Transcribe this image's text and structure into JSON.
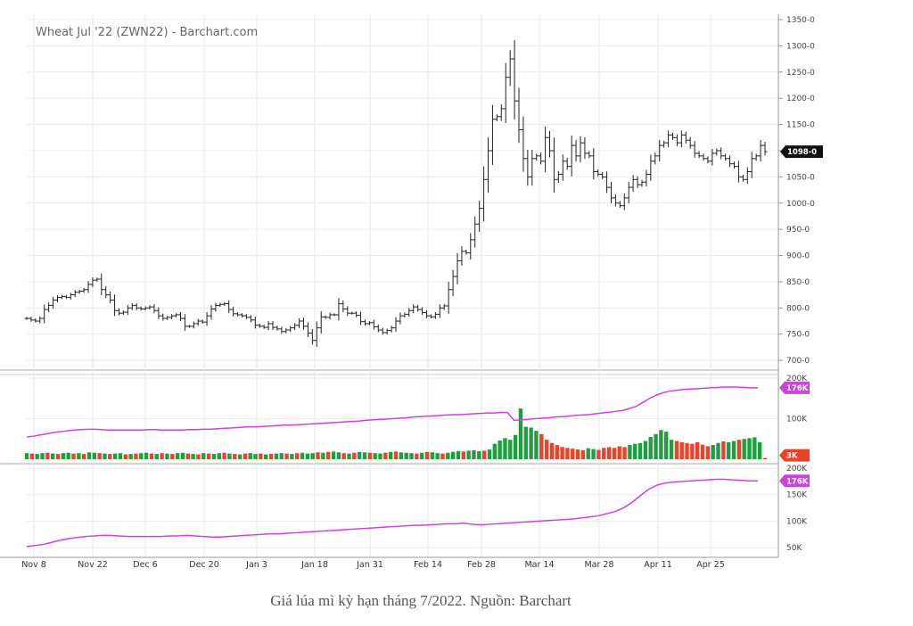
{
  "caption": "Giá lúa mì kỳ hạn tháng 7/2022. Nguồn: Barchart",
  "chart_data": {
    "type": "ohlc",
    "title": "Wheat Jul '22 (ZWN22) - Barchart.com",
    "x_labels": [
      "Nov 8",
      "Nov 22",
      "Dec 6",
      "Dec 20",
      "Jan 3",
      "Jan 18",
      "Jan 31",
      "Feb 14",
      "Feb 28",
      "Mar 14",
      "Mar 28",
      "Apr 11",
      "Apr 25"
    ],
    "price_axis": {
      "ylim": [
        690,
        1350
      ],
      "ticks": [
        "1350-0",
        "1300-0",
        "1250-0",
        "1200-0",
        "1150-0",
        "1100-0",
        "1050-0",
        "1000-0",
        "950-0",
        "900-0",
        "850-0",
        "800-0",
        "750-0",
        "700-0"
      ]
    },
    "last_price_label": "1098-0",
    "price_series": [
      780,
      777,
      775,
      780,
      797,
      805,
      815,
      820,
      822,
      820,
      825,
      830,
      832,
      835,
      845,
      853,
      855,
      835,
      825,
      815,
      795,
      790,
      792,
      800,
      805,
      800,
      798,
      800,
      802,
      795,
      785,
      780,
      782,
      785,
      787,
      780,
      765,
      765,
      770,
      775,
      773,
      785,
      798,
      805,
      807,
      808,
      797,
      789,
      787,
      785,
      782,
      777,
      767,
      765,
      763,
      770,
      763,
      760,
      755,
      758,
      762,
      767,
      775,
      765,
      752,
      738,
      762,
      783,
      782,
      787,
      787,
      808,
      798,
      790,
      790,
      786,
      774,
      770,
      772,
      764,
      758,
      753,
      757,
      762,
      775,
      785,
      788,
      795,
      802,
      797,
      791,
      785,
      783,
      788,
      800,
      804,
      835,
      860,
      890,
      908,
      905,
      930,
      960,
      990,
      1045,
      1100,
      1160,
      1165,
      1180,
      1240,
      1275,
      1195,
      1140,
      1085,
      1050,
      1085,
      1090,
      1080,
      1125,
      1100,
      1045,
      1055,
      1080,
      1070,
      1110,
      1090,
      1115,
      1095,
      1090,
      1060,
      1055,
      1050,
      1030,
      1010,
      1000,
      995,
      1010,
      1030,
      1045,
      1035,
      1040,
      1055,
      1080,
      1090,
      1110,
      1115,
      1130,
      1125,
      1115,
      1130,
      1120,
      1110,
      1095,
      1090,
      1085,
      1080,
      1095,
      1100,
      1090,
      1085,
      1075,
      1070,
      1050,
      1045,
      1060,
      1085,
      1090,
      1110,
      1098
    ],
    "volume_axis": {
      "ylim": [
        0,
        200000
      ],
      "ticks": [
        "200K",
        "100K"
      ],
      "last_label": "3K",
      "oi_label": "176K"
    },
    "volume_series": [
      15,
      14,
      13,
      15,
      16,
      14,
      13,
      15,
      16,
      14,
      15,
      13,
      17,
      16,
      15,
      14,
      13,
      14,
      15,
      12,
      13,
      14,
      15,
      16,
      14,
      13,
      15,
      14,
      13,
      15,
      16,
      14,
      13,
      12,
      15,
      14,
      13,
      15,
      16,
      14,
      13,
      12,
      14,
      15,
      13,
      14,
      12,
      13,
      14,
      15,
      14,
      13,
      15,
      16,
      14,
      15,
      17,
      16,
      18,
      19,
      17,
      15,
      14,
      16,
      18,
      17,
      16,
      15,
      14,
      16,
      18,
      19,
      17,
      16,
      15,
      14,
      16,
      18,
      17,
      15,
      14,
      16,
      18,
      20,
      19,
      21,
      22,
      20,
      21,
      24,
      38,
      46,
      52,
      48,
      60,
      125,
      80,
      78,
      70,
      62,
      48,
      40,
      35,
      30,
      28,
      26,
      24,
      22,
      27,
      25,
      23,
      28,
      30,
      28,
      32,
      30,
      35,
      38,
      40,
      45,
      55,
      62,
      72,
      68,
      48,
      45,
      42,
      40,
      38,
      42,
      36,
      32,
      35,
      40,
      44,
      42,
      45,
      48,
      50,
      52,
      54,
      42,
      3
    ],
    "volume_up": [
      1,
      0,
      1,
      1,
      0,
      1,
      0,
      1,
      1,
      0,
      1,
      0,
      1,
      1,
      0,
      1,
      0,
      1,
      1,
      0,
      1,
      0,
      1,
      1,
      0,
      1,
      0,
      1,
      0,
      1,
      1,
      0,
      1,
      0,
      1,
      0,
      1,
      1,
      0,
      1,
      0,
      1,
      0,
      1,
      1,
      0,
      1,
      0,
      1,
      1,
      0,
      1,
      0,
      1,
      1,
      1,
      0,
      1,
      0,
      1,
      1,
      0,
      1,
      0,
      1,
      1,
      0,
      1,
      1,
      0,
      1,
      0,
      1,
      1,
      1,
      0,
      1,
      0,
      1,
      1,
      0,
      1,
      1,
      1,
      0,
      1,
      1,
      1,
      0,
      1,
      1,
      1,
      1,
      1,
      1,
      1,
      1,
      1,
      1,
      0,
      0,
      0,
      0,
      0,
      0,
      0,
      0,
      0,
      1,
      1,
      0,
      0,
      0,
      0,
      0,
      0,
      1,
      1,
      1,
      1,
      1,
      1,
      1,
      1,
      1,
      0,
      0,
      0,
      0,
      0,
      0,
      0,
      1,
      1,
      0,
      1,
      1,
      0,
      1,
      1,
      1,
      1,
      0
    ],
    "open_interest_volume_pane": [
      55,
      57,
      60,
      63,
      66,
      68,
      70,
      72,
      73,
      74,
      74,
      73,
      72,
      72,
      72,
      72,
      72,
      72,
      73,
      73,
      72,
      72,
      72,
      72,
      73,
      73,
      74,
      74,
      75,
      76,
      77,
      78,
      79,
      80,
      80,
      81,
      82,
      83,
      84,
      84,
      85,
      86,
      87,
      88,
      89,
      90,
      91,
      92,
      93,
      94,
      96,
      97,
      98,
      99,
      100,
      101,
      102,
      104,
      105,
      106,
      107,
      108,
      109,
      110,
      110,
      111,
      112,
      113,
      114,
      114,
      115,
      115,
      96,
      97,
      98,
      100,
      101,
      102,
      104,
      105,
      106,
      108,
      109,
      110,
      112,
      114,
      116,
      118,
      120,
      125,
      130,
      140,
      150,
      158,
      164,
      168,
      170,
      172,
      173,
      174,
      175,
      176,
      177,
      178,
      178,
      178,
      177,
      176,
      176
    ],
    "oi_axis": {
      "ylim": [
        40000,
        200000
      ],
      "ticks": [
        "200K",
        "150K",
        "100K",
        "50K"
      ],
      "last_label": "176K"
    },
    "open_interest": [
      52,
      54,
      56,
      60,
      64,
      67,
      69,
      71,
      72,
      73,
      73,
      72,
      71,
      71,
      71,
      71,
      71,
      72,
      72,
      73,
      72,
      71,
      70,
      70,
      71,
      72,
      73,
      74,
      75,
      76,
      76,
      77,
      78,
      79,
      80,
      81,
      82,
      83,
      84,
      85,
      86,
      87,
      88,
      89,
      90,
      91,
      92,
      92,
      93,
      94,
      95,
      95,
      96,
      94,
      93,
      94,
      95,
      96,
      97,
      98,
      99,
      100,
      101,
      102,
      103,
      104,
      106,
      108,
      110,
      114,
      118,
      125,
      135,
      148,
      160,
      168,
      172,
      174,
      175,
      176,
      177,
      178,
      179,
      179,
      178,
      177,
      176,
      176
    ]
  },
  "colors": {
    "up": "#1e9e3e",
    "down": "#e8432b",
    "oi_line": "#cc44dd",
    "tag_bg": "#cc44dd",
    "last_price_bg": "#111111"
  }
}
